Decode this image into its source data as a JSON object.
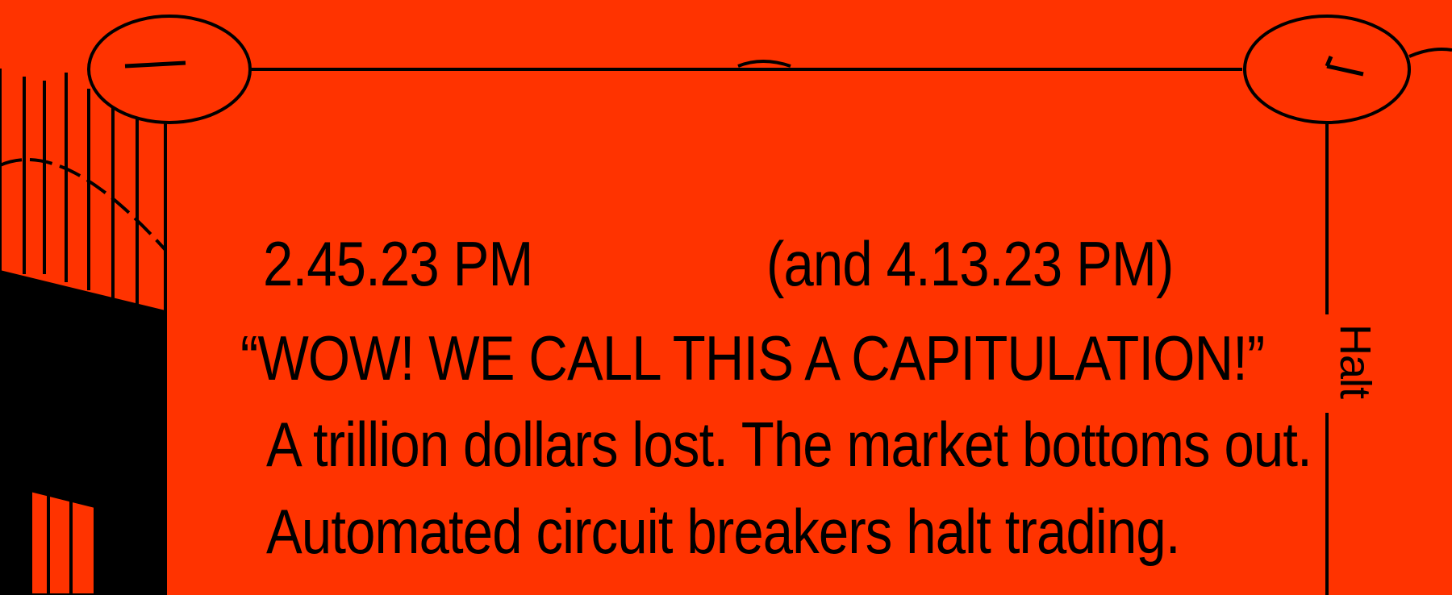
{
  "colors": {
    "background": "#ff3300",
    "ink": "#000000"
  },
  "content": {
    "time_primary": "2.45.23 PM",
    "time_secondary": "(and 4.13.23 PM)",
    "headline": "“WOW! WE CALL THIS A CAPITULATION!”",
    "lines": [
      "A trillion dollars lost. The market bottoms out.",
      "Automated circuit breakers halt trading."
    ],
    "side_label": "Halt"
  }
}
